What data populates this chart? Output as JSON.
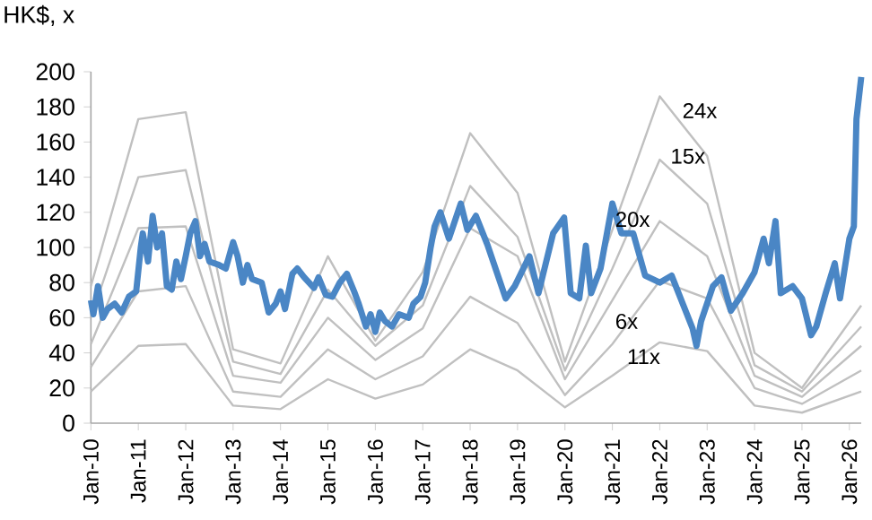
{
  "chart_data": {
    "type": "line",
    "ylabel": "HK$, x",
    "xlim": [
      "2010-01",
      "2026-04"
    ],
    "ylim": [
      0,
      200
    ],
    "yticks": [
      0,
      20,
      40,
      60,
      80,
      100,
      120,
      140,
      160,
      180,
      200
    ],
    "xticks": [
      {
        "value": "2010-01",
        "label": "Jan-10"
      },
      {
        "value": "2011-01",
        "label": "Jan-11"
      },
      {
        "value": "2012-01",
        "label": "Jan-12"
      },
      {
        "value": "2013-01",
        "label": "Jan-13"
      },
      {
        "value": "2014-01",
        "label": "Jan-14"
      },
      {
        "value": "2015-01",
        "label": "Jan-15"
      },
      {
        "value": "2016-01",
        "label": "Jan-16"
      },
      {
        "value": "2017-01",
        "label": "Jan-17"
      },
      {
        "value": "2018-01",
        "label": "Jan-18"
      },
      {
        "value": "2019-01",
        "label": "Jan-19"
      },
      {
        "value": "2020-01",
        "label": "Jan-20"
      },
      {
        "value": "2021-01",
        "label": "Jan-21"
      },
      {
        "value": "2022-01",
        "label": "Jan-22"
      },
      {
        "value": "2023-01",
        "label": "Jan-23"
      },
      {
        "value": "2024-01",
        "label": "Jan-24"
      },
      {
        "value": "2025-01",
        "label": "Jan-25"
      },
      {
        "value": "2026-01",
        "label": "Jan-26"
      }
    ],
    "grid": false,
    "legend": false,
    "marker": "none",
    "line_style": "solid",
    "x": [
      "2010-01",
      "2011-01",
      "2012-01",
      "2013-01",
      "2014-01",
      "2015-01",
      "2016-01",
      "2017-01",
      "2018-01",
      "2019-01",
      "2020-01",
      "2021-01",
      "2022-01",
      "2023-01",
      "2024-01",
      "2025-01",
      "2026-04"
    ],
    "series": [
      {
        "color": "#c0c0c0",
        "values": [
          78,
          173,
          177,
          42,
          34,
          95,
          47,
          86,
          165,
          131,
          35,
          110,
          186,
          152,
          40,
          20,
          67
        ]
      },
      {
        "color": "#c0c0c0",
        "values": [
          60,
          140,
          144,
          35,
          28,
          76,
          44,
          67,
          135,
          106,
          30,
          88,
          150,
          125,
          33,
          18,
          55
        ]
      },
      {
        "color": "#c0c0c0",
        "values": [
          45,
          111,
          112,
          27,
          23,
          60,
          36,
          54,
          111,
          95,
          25,
          70,
          115,
          95,
          27,
          15,
          44
        ]
      },
      {
        "color": "#c0c0c0",
        "values": [
          32,
          75,
          78,
          18,
          15,
          42,
          25,
          38,
          72,
          57,
          16,
          45,
          81,
          71,
          20,
          11,
          30
        ]
      },
      {
        "color": "#c0c0c0",
        "values": [
          18,
          44,
          45,
          10,
          8,
          25,
          14,
          22,
          42,
          30,
          9,
          27,
          46,
          41,
          10,
          6,
          18
        ]
      },
      {
        "color": "#4a86c5",
        "x": [
          "2010-01-01",
          "2010-01-20",
          "2010-02-25",
          "2010-04-01",
          "2010-05-08",
          "2010-07-01",
          "2010-08-25",
          "2010-10-20",
          "2010-12-15",
          "2011-01-20",
          "2011-02-05",
          "2011-03-15",
          "2011-04-20",
          "2011-05-25",
          "2011-07-01",
          "2011-08-08",
          "2011-09-15",
          "2011-10-20",
          "2011-11-25",
          "2012-01-01",
          "2012-02-05",
          "2012-03-15",
          "2012-04-20",
          "2012-05-25",
          "2012-07-01",
          "2012-09-15",
          "2012-11-05",
          "2013-01-01",
          "2013-02-05",
          "2013-03-15",
          "2013-04-20",
          "2013-05-25",
          "2013-08-08",
          "2013-10-01",
          "2013-11-25",
          "2014-01-01",
          "2014-02-05",
          "2014-04-01",
          "2014-05-08",
          "2014-07-01",
          "2014-09-15",
          "2014-10-20",
          "2014-12-15",
          "2015-02-05",
          "2015-04-01",
          "2015-05-25",
          "2015-07-20",
          "2015-08-25",
          "2015-10-20",
          "2015-11-25",
          "2016-01-01",
          "2016-02-05",
          "2016-03-15",
          "2016-05-08",
          "2016-07-01",
          "2016-09-15",
          "2016-10-20",
          "2016-12-15",
          "2017-01-20",
          "2017-03-01",
          "2017-04-01",
          "2017-05-15",
          "2017-07-20",
          "2017-10-20",
          "2017-12-10",
          "2018-02-15",
          "2018-05-15",
          "2018-10-01",
          "2018-12-10",
          "2019-04-01",
          "2019-06-10",
          "2019-10-01",
          "2019-12-25",
          "2020-02-15",
          "2020-04-20",
          "2020-06-10",
          "2020-07-20",
          "2020-10-01",
          "2021-01-01",
          "2021-03-10",
          "2021-06-10",
          "2021-09-10",
          "2022-01-01",
          "2022-04-01",
          "2022-07-01",
          "2022-09-10",
          "2022-10-10",
          "2022-11-15",
          "2023-02-15",
          "2023-04-20",
          "2023-07-01",
          "2023-10-01",
          "2024-01-01",
          "2024-03-10",
          "2024-04-20",
          "2024-06-10",
          "2024-07-20",
          "2024-10-20",
          "2025-01-01",
          "2025-03-10",
          "2025-04-20",
          "2025-07-01",
          "2025-09-10",
          "2025-10-20",
          "2026-01-01",
          "2026-02-05",
          "2026-02-25",
          "2026-04-01"
        ],
        "values": [
          70,
          62,
          78,
          60,
          65,
          68,
          63,
          72,
          75,
          100,
          108,
          92,
          118,
          100,
          108,
          78,
          76,
          92,
          82,
          95,
          108,
          115,
          95,
          102,
          92,
          90,
          88,
          103,
          95,
          80,
          90,
          82,
          80,
          63,
          68,
          75,
          65,
          85,
          88,
          83,
          77,
          83,
          73,
          72,
          80,
          85,
          75,
          68,
          55,
          62,
          52,
          63,
          58,
          55,
          62,
          60,
          68,
          72,
          80,
          100,
          112,
          120,
          105,
          125,
          110,
          118,
          101,
          71,
          78,
          95,
          74,
          108,
          117,
          74,
          71,
          101,
          74,
          88,
          125,
          108,
          108,
          84,
          80,
          84,
          67,
          54,
          44,
          58,
          78,
          83,
          64,
          74,
          86,
          105,
          91,
          115,
          74,
          78,
          71,
          50,
          55,
          74,
          91,
          71,
          105,
          112,
          173,
          197
        ]
      }
    ],
    "annotations": [
      {
        "text": "24x",
        "x": "2022-06",
        "y": 172
      },
      {
        "text": "15x",
        "x": "2022-03",
        "y": 146
      },
      {
        "text": "20x",
        "x": "2021-01",
        "y": 110
      },
      {
        "text": "6x",
        "x": "2021-01",
        "y": 52
      },
      {
        "text": "11x",
        "x": "2021-04",
        "y": 32
      }
    ]
  }
}
